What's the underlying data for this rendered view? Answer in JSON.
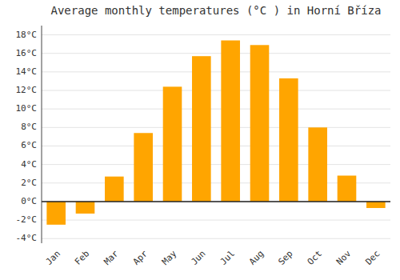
{
  "chart_data": {
    "type": "bar",
    "title": "Average monthly temperatures (°C ) in Horní Bříza",
    "categories": [
      "Jan",
      "Feb",
      "Mar",
      "Apr",
      "May",
      "Jun",
      "Jul",
      "Aug",
      "Sep",
      "Oct",
      "Nov",
      "Dec"
    ],
    "values": [
      -2.5,
      -1.3,
      2.7,
      7.4,
      12.4,
      15.7,
      17.4,
      16.9,
      13.3,
      8.0,
      2.8,
      -0.7
    ],
    "color": "#FFA500",
    "ylim": [
      -4.5,
      19
    ],
    "yticks": [
      {
        "value": -4,
        "label": "-4°C"
      },
      {
        "value": -2,
        "label": "-2°C"
      },
      {
        "value": 0,
        "label": "0°C"
      },
      {
        "value": 2,
        "label": "2°C"
      },
      {
        "value": 4,
        "label": "4°C"
      },
      {
        "value": 6,
        "label": "6°C"
      },
      {
        "value": 8,
        "label": "8°C"
      },
      {
        "value": 10,
        "label": "10°C"
      },
      {
        "value": 12,
        "label": "12°C"
      },
      {
        "value": 14,
        "label": "14°C"
      },
      {
        "value": 16,
        "label": "16°C"
      },
      {
        "value": 18,
        "label": "18°C"
      }
    ],
    "grid": true
  }
}
